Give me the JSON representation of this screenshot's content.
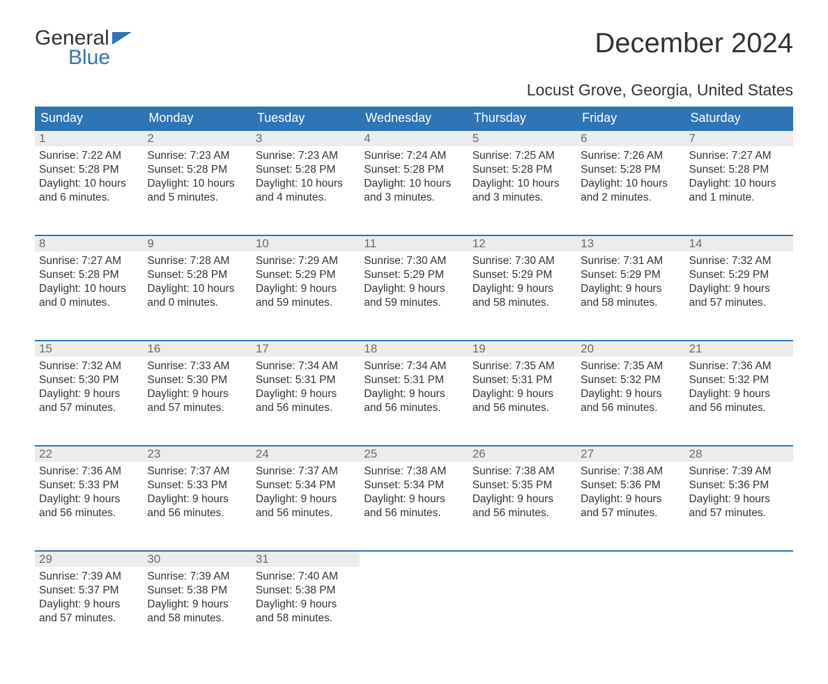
{
  "logo": {
    "text_top": "General",
    "text_bottom": "Blue",
    "accent_color": "#2f74b5"
  },
  "title": "December 2024",
  "subtitle": "Locust Grove, Georgia, United States",
  "header_bg": "#2f74b5",
  "header_fg": "#ffffff",
  "daynum_bg": "#ececec",
  "days_of_week": [
    "Sunday",
    "Monday",
    "Tuesday",
    "Wednesday",
    "Thursday",
    "Friday",
    "Saturday"
  ],
  "weeks": [
    [
      {
        "n": "1",
        "sr": "7:22 AM",
        "ss": "5:28 PM",
        "dl1": "Daylight: 10 hours",
        "dl2": "and 6 minutes."
      },
      {
        "n": "2",
        "sr": "7:23 AM",
        "ss": "5:28 PM",
        "dl1": "Daylight: 10 hours",
        "dl2": "and 5 minutes."
      },
      {
        "n": "3",
        "sr": "7:23 AM",
        "ss": "5:28 PM",
        "dl1": "Daylight: 10 hours",
        "dl2": "and 4 minutes."
      },
      {
        "n": "4",
        "sr": "7:24 AM",
        "ss": "5:28 PM",
        "dl1": "Daylight: 10 hours",
        "dl2": "and 3 minutes."
      },
      {
        "n": "5",
        "sr": "7:25 AM",
        "ss": "5:28 PM",
        "dl1": "Daylight: 10 hours",
        "dl2": "and 3 minutes."
      },
      {
        "n": "6",
        "sr": "7:26 AM",
        "ss": "5:28 PM",
        "dl1": "Daylight: 10 hours",
        "dl2": "and 2 minutes."
      },
      {
        "n": "7",
        "sr": "7:27 AM",
        "ss": "5:28 PM",
        "dl1": "Daylight: 10 hours",
        "dl2": "and 1 minute."
      }
    ],
    [
      {
        "n": "8",
        "sr": "7:27 AM",
        "ss": "5:28 PM",
        "dl1": "Daylight: 10 hours",
        "dl2": "and 0 minutes."
      },
      {
        "n": "9",
        "sr": "7:28 AM",
        "ss": "5:28 PM",
        "dl1": "Daylight: 10 hours",
        "dl2": "and 0 minutes."
      },
      {
        "n": "10",
        "sr": "7:29 AM",
        "ss": "5:29 PM",
        "dl1": "Daylight: 9 hours",
        "dl2": "and 59 minutes."
      },
      {
        "n": "11",
        "sr": "7:30 AM",
        "ss": "5:29 PM",
        "dl1": "Daylight: 9 hours",
        "dl2": "and 59 minutes."
      },
      {
        "n": "12",
        "sr": "7:30 AM",
        "ss": "5:29 PM",
        "dl1": "Daylight: 9 hours",
        "dl2": "and 58 minutes."
      },
      {
        "n": "13",
        "sr": "7:31 AM",
        "ss": "5:29 PM",
        "dl1": "Daylight: 9 hours",
        "dl2": "and 58 minutes."
      },
      {
        "n": "14",
        "sr": "7:32 AM",
        "ss": "5:29 PM",
        "dl1": "Daylight: 9 hours",
        "dl2": "and 57 minutes."
      }
    ],
    [
      {
        "n": "15",
        "sr": "7:32 AM",
        "ss": "5:30 PM",
        "dl1": "Daylight: 9 hours",
        "dl2": "and 57 minutes."
      },
      {
        "n": "16",
        "sr": "7:33 AM",
        "ss": "5:30 PM",
        "dl1": "Daylight: 9 hours",
        "dl2": "and 57 minutes."
      },
      {
        "n": "17",
        "sr": "7:34 AM",
        "ss": "5:31 PM",
        "dl1": "Daylight: 9 hours",
        "dl2": "and 56 minutes."
      },
      {
        "n": "18",
        "sr": "7:34 AM",
        "ss": "5:31 PM",
        "dl1": "Daylight: 9 hours",
        "dl2": "and 56 minutes."
      },
      {
        "n": "19",
        "sr": "7:35 AM",
        "ss": "5:31 PM",
        "dl1": "Daylight: 9 hours",
        "dl2": "and 56 minutes."
      },
      {
        "n": "20",
        "sr": "7:35 AM",
        "ss": "5:32 PM",
        "dl1": "Daylight: 9 hours",
        "dl2": "and 56 minutes."
      },
      {
        "n": "21",
        "sr": "7:36 AM",
        "ss": "5:32 PM",
        "dl1": "Daylight: 9 hours",
        "dl2": "and 56 minutes."
      }
    ],
    [
      {
        "n": "22",
        "sr": "7:36 AM",
        "ss": "5:33 PM",
        "dl1": "Daylight: 9 hours",
        "dl2": "and 56 minutes."
      },
      {
        "n": "23",
        "sr": "7:37 AM",
        "ss": "5:33 PM",
        "dl1": "Daylight: 9 hours",
        "dl2": "and 56 minutes."
      },
      {
        "n": "24",
        "sr": "7:37 AM",
        "ss": "5:34 PM",
        "dl1": "Daylight: 9 hours",
        "dl2": "and 56 minutes."
      },
      {
        "n": "25",
        "sr": "7:38 AM",
        "ss": "5:34 PM",
        "dl1": "Daylight: 9 hours",
        "dl2": "and 56 minutes."
      },
      {
        "n": "26",
        "sr": "7:38 AM",
        "ss": "5:35 PM",
        "dl1": "Daylight: 9 hours",
        "dl2": "and 56 minutes."
      },
      {
        "n": "27",
        "sr": "7:38 AM",
        "ss": "5:36 PM",
        "dl1": "Daylight: 9 hours",
        "dl2": "and 57 minutes."
      },
      {
        "n": "28",
        "sr": "7:39 AM",
        "ss": "5:36 PM",
        "dl1": "Daylight: 9 hours",
        "dl2": "and 57 minutes."
      }
    ],
    [
      {
        "n": "29",
        "sr": "7:39 AM",
        "ss": "5:37 PM",
        "dl1": "Daylight: 9 hours",
        "dl2": "and 57 minutes."
      },
      {
        "n": "30",
        "sr": "7:39 AM",
        "ss": "5:38 PM",
        "dl1": "Daylight: 9 hours",
        "dl2": "and 58 minutes."
      },
      {
        "n": "31",
        "sr": "7:40 AM",
        "ss": "5:38 PM",
        "dl1": "Daylight: 9 hours",
        "dl2": "and 58 minutes."
      },
      null,
      null,
      null,
      null
    ]
  ],
  "labels": {
    "sunrise": "Sunrise: ",
    "sunset": "Sunset: "
  }
}
